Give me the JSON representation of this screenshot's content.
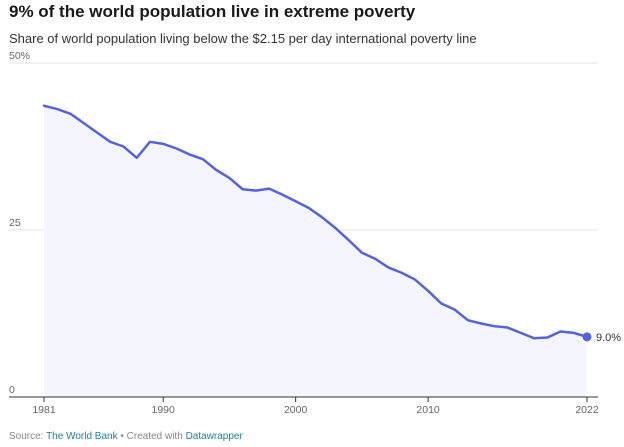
{
  "title": "9% of the world population live in extreme poverty",
  "subtitle": "Share of world population living below the $2.15 per day international poverty line",
  "footer": {
    "source_prefix": "Source: ",
    "source_name": "The World Bank",
    "separator": " • Created with ",
    "tool_name": "Datawrapper"
  },
  "colors": {
    "line": "#5562e0",
    "area": "#f5f5fd",
    "grid": "#e5e5e5",
    "axis": "#333333"
  },
  "chart_data": {
    "type": "area",
    "title": "9% of the world population live in extreme poverty",
    "subtitle": "Share of world population living below the $2.15 per day international poverty line",
    "xlabel": "",
    "ylabel": "",
    "x_range": [
      1981,
      2022
    ],
    "y_range": [
      0,
      50
    ],
    "y_ticks": [
      {
        "value": 0,
        "label": "0"
      },
      {
        "value": 25,
        "label": "25"
      },
      {
        "value": 50,
        "label": "50%"
      }
    ],
    "x_ticks": [
      {
        "value": 1981,
        "label": "1981"
      },
      {
        "value": 1990,
        "label": "1990"
      },
      {
        "value": 2000,
        "label": "2000"
      },
      {
        "value": 2010,
        "label": "2010"
      },
      {
        "value": 2022,
        "label": "2022"
      }
    ],
    "grid": true,
    "legend": false,
    "series": [
      {
        "x": [
          1981,
          1982,
          1983,
          1984,
          1985,
          1986,
          1987,
          1988,
          1989,
          1990,
          1991,
          1992,
          1993,
          1994,
          1995,
          1996,
          1997,
          1998,
          1999,
          2000,
          2001,
          2002,
          2003,
          2004,
          2005,
          2006,
          2007,
          2008,
          2009,
          2010,
          2011,
          2012,
          2013,
          2014,
          2015,
          2016,
          2017,
          2018,
          2019,
          2020,
          2021,
          2022
        ],
        "y": [
          43.6,
          43.1,
          42.4,
          41.0,
          39.6,
          38.2,
          37.5,
          35.8,
          38.2,
          37.9,
          37.2,
          36.3,
          35.6,
          34.0,
          32.8,
          31.1,
          30.9,
          31.2,
          30.3,
          29.3,
          28.3,
          26.9,
          25.3,
          23.5,
          21.6,
          20.7,
          19.4,
          18.6,
          17.6,
          15.9,
          14.0,
          13.1,
          11.5,
          11.0,
          10.6,
          10.4,
          9.6,
          8.8,
          8.9,
          9.8,
          9.6,
          9.0
        ]
      }
    ],
    "annotations": [
      {
        "x": 2022,
        "y": 9.0,
        "label": "9.0%"
      }
    ]
  }
}
